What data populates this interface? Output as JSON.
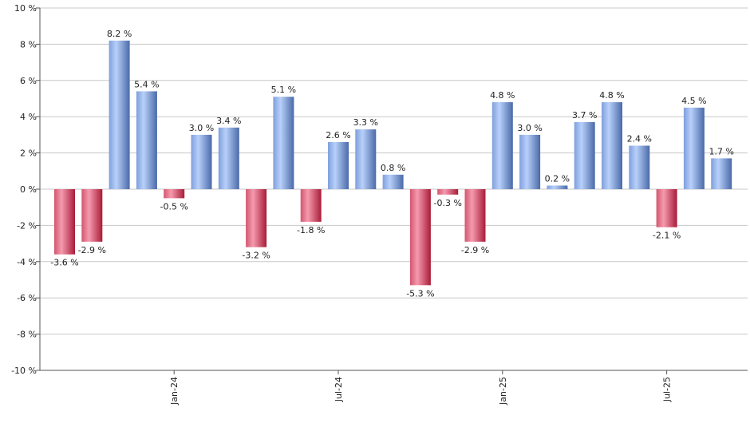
{
  "chart_data": {
    "type": "bar",
    "title": "",
    "xlabel": "",
    "ylabel": "",
    "ylim": [
      -10,
      10
    ],
    "y_ticks": [
      -10,
      -8,
      -6,
      -4,
      -2,
      0,
      2,
      4,
      6,
      8,
      10
    ],
    "y_tick_labels": [
      "-10 %",
      "-8 %",
      "-6 %",
      "-4 %",
      "-2 %",
      "0 %",
      "2 %",
      "4 %",
      "6 %",
      "8 %",
      "10 %"
    ],
    "x_tick_labels": [
      {
        "label": "Jan-24",
        "index": 4
      },
      {
        "label": "Jul-24",
        "index": 10
      },
      {
        "label": "Jan-25",
        "index": 16
      },
      {
        "label": "Jul-25",
        "index": 22
      }
    ],
    "values": [
      -3.6,
      -2.9,
      8.2,
      5.4,
      -0.5,
      3.0,
      3.4,
      -3.2,
      5.1,
      -1.8,
      2.6,
      3.3,
      0.8,
      -5.3,
      -0.3,
      -2.9,
      4.8,
      3.0,
      0.2,
      3.7,
      4.8,
      2.4,
      -2.1,
      4.5,
      1.7
    ],
    "value_labels": [
      "-3.6 %",
      "-2.9 %",
      "8.2 %",
      "5.4 %",
      "-0.5 %",
      "3.0 %",
      "3.4 %",
      "-3.2 %",
      "5.1 %",
      "-1.8 %",
      "2.6 %",
      "3.3 %",
      "0.8 %",
      "-5.3 %",
      "-0.3 %",
      "-2.9 %",
      "4.8 %",
      "3.0 %",
      "0.2 %",
      "3.7 %",
      "4.8 %",
      "2.4 %",
      "-2.1 %",
      "4.5 %",
      "1.7 %"
    ],
    "grid": true,
    "colors": {
      "positive_light": "#a9c4f5",
      "positive_dark": "#4a6aa8",
      "negative_light": "#f08aa0",
      "negative_dark": "#b8203e",
      "grid": "#c8c8c8",
      "axis": "#555555"
    }
  }
}
